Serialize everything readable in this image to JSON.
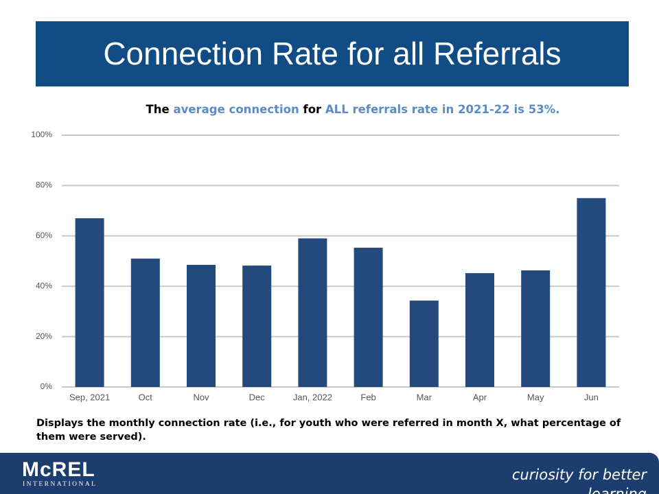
{
  "chart_data": {
    "type": "bar",
    "title": "Connection Rate for all Referrals",
    "subtitle": [
      {
        "text": "The ",
        "color": "#000000"
      },
      {
        "text": "average connection",
        "color": "#5b8bc4"
      },
      {
        "text": " for ",
        "color": "#000000"
      },
      {
        "text": "ALL referrals rate in 2021-22 is 53%.",
        "color": "#5b8bc4"
      }
    ],
    "categories": [
      "Sep, 2021",
      "Oct",
      "Nov",
      "Dec",
      "Jan, 2022",
      "Feb",
      "Mar",
      "Apr",
      "May",
      "Jun"
    ],
    "values": [
      67,
      51,
      48.5,
      48.2,
      59,
      55.3,
      34.3,
      45.2,
      46.3,
      75
    ],
    "color": "#234a7c",
    "ylim": [
      0,
      100
    ],
    "yticks": [
      {
        "value": 0,
        "label": "0%"
      },
      {
        "value": 20,
        "label": "20%"
      },
      {
        "value": 40,
        "label": "40%"
      },
      {
        "value": 60,
        "label": "60%"
      },
      {
        "value": 80,
        "label": "80%"
      },
      {
        "value": 100,
        "label": "100%"
      }
    ],
    "grid": true,
    "caption": "Displays the monthly connection rate (i.e., for youth who were referred in month X, what percentage of them were served)."
  },
  "footer": {
    "logo": "McREL",
    "logo_sub": "INTERNATIONAL",
    "tagline": "curiosity for better learning"
  }
}
